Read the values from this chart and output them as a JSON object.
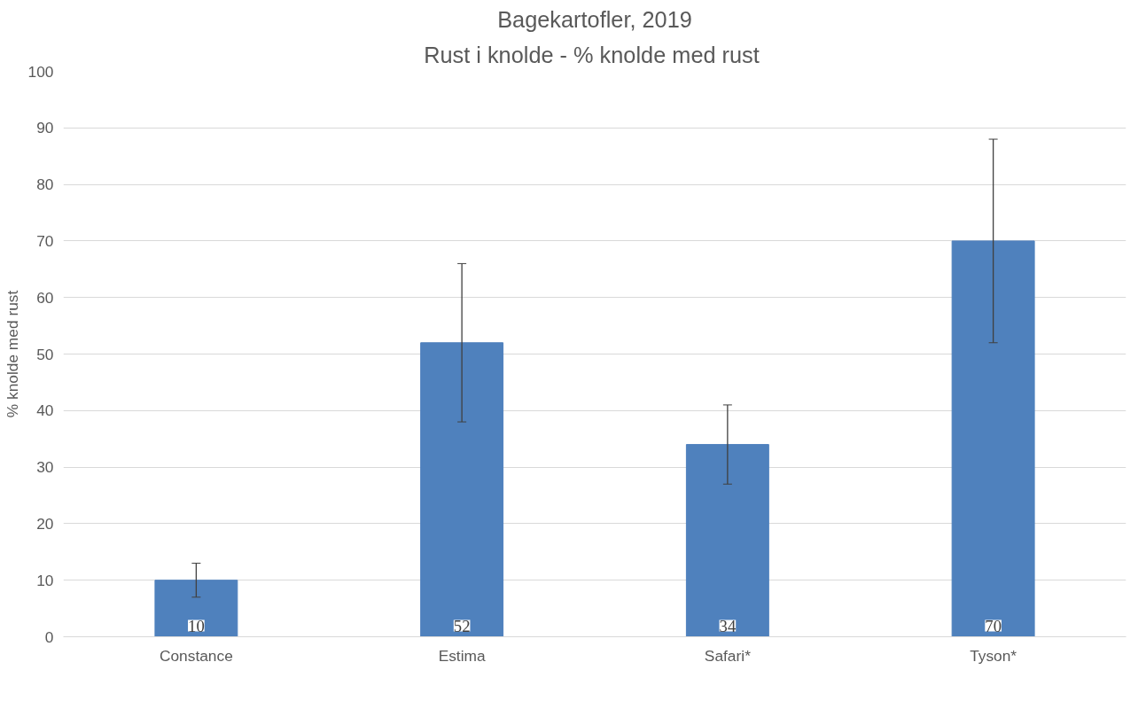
{
  "chart_data": {
    "type": "bar",
    "title": "Bagekartofler, 2019",
    "subtitle": "Rust i knolde -  % knolde med rust",
    "ylabel": "% knolde med rust",
    "categories": [
      "Constance",
      "Estima",
      "Safari*",
      "Tyson*"
    ],
    "values": [
      10,
      52,
      34,
      70
    ],
    "errors": [
      3,
      14,
      7,
      18
    ],
    "color": "#4f81bd",
    "ylim": [
      0,
      100
    ],
    "yticks": [
      0,
      10,
      20,
      30,
      40,
      50,
      60,
      70,
      80,
      90,
      100
    ],
    "grid": "y",
    "data_labels": true
  }
}
